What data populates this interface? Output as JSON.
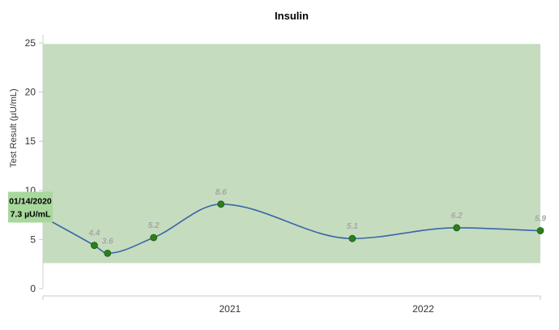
{
  "chart_data": {
    "type": "line",
    "title": "Insulin",
    "ylabel": "Test Result (µU/mL)",
    "xlabel": "",
    "ylim": [
      0,
      25
    ],
    "yticks": [
      0,
      5,
      10,
      15,
      20,
      25
    ],
    "xlim": [
      "2020-01-14",
      "2022-08-10"
    ],
    "xticks": [
      {
        "date": "2021-01-01",
        "label": "2021"
      },
      {
        "date": "2022-01-01",
        "label": "2022"
      }
    ],
    "reference_range": [
      2.6,
      24.9
    ],
    "series": [
      {
        "points": [
          {
            "date": "2020-01-14",
            "value": 7.3
          },
          {
            "date": "2020-04-20",
            "value": 4.4
          },
          {
            "date": "2020-05-15",
            "value": 3.6
          },
          {
            "date": "2020-08-10",
            "value": 5.2
          },
          {
            "date": "2020-12-15",
            "value": 8.6
          },
          {
            "date": "2021-08-20",
            "value": 5.1
          },
          {
            "date": "2022-03-05",
            "value": 6.2
          },
          {
            "date": "2022-08-10",
            "value": 5.9
          }
        ]
      }
    ],
    "tooltip": {
      "date": "01/14/2020",
      "value": "7.3 µU/mL"
    },
    "grid": false,
    "colors": {
      "line": "#3a67a8",
      "marker": "#2e7d1e",
      "marker_stroke": "#1d5c10",
      "range_band": "#c5dcbf",
      "tooltip_bg": "#a8d89c",
      "data_label": "#a6a6a6"
    }
  }
}
